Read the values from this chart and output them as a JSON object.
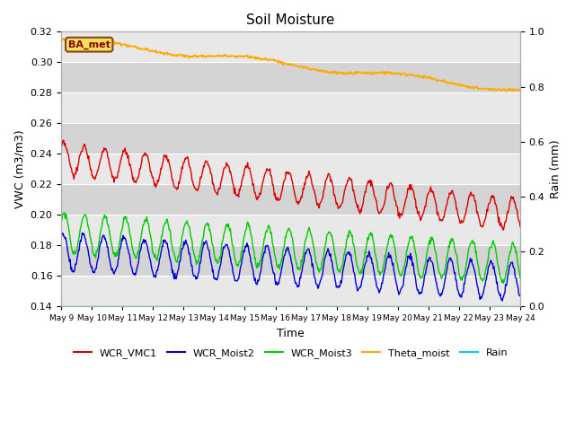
{
  "title": "Soil Moisture",
  "xlabel": "Time",
  "ylabel_left": "VWC (m3/m3)",
  "ylabel_right": "Rain (mm)",
  "ylim_left": [
    0.14,
    0.32
  ],
  "ylim_right": [
    0.0,
    1.0
  ],
  "station_label": "BA_met",
  "background_color": "#ffffff",
  "plot_bg_color": "#e0e0e0",
  "band_colors": [
    "#e8e8e8",
    "#d8d8d8"
  ],
  "grid_color": "#ffffff",
  "series": {
    "WCR_VMC1": {
      "color": "#dd0000"
    },
    "WCR_Moist2": {
      "color": "#0000dd"
    },
    "WCR_Moist3": {
      "color": "#00cc00"
    },
    "Theta_moist": {
      "color": "#ffaa00"
    },
    "Rain": {
      "color": "#00ccee"
    }
  },
  "x_tick_labels": [
    "May 9",
    "May 10",
    "May 11",
    "May 12",
    "May 13",
    "May 14",
    "May 15",
    "May 16",
    "May 17",
    "May 18",
    "May 19",
    "May 20",
    "May 21",
    "May 22",
    "May 23",
    "May 24"
  ],
  "legend_items": [
    "WCR_VMC1",
    "WCR_Moist2",
    "WCR_Moist3",
    "Theta_moist",
    "Rain"
  ],
  "legend_colors": [
    "#dd0000",
    "#0000dd",
    "#00cc00",
    "#ffaa00",
    "#00ccee"
  ],
  "figsize": [
    6.4,
    4.8
  ],
  "dpi": 100
}
